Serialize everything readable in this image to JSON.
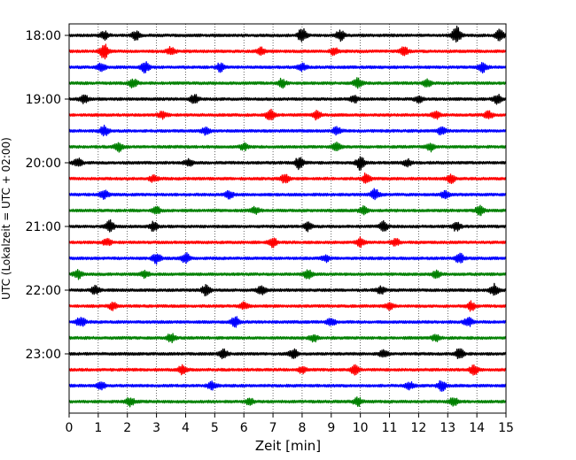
{
  "chart_data": {
    "type": "line",
    "title": "",
    "xlabel": "Zeit  [min]",
    "ylabel": "UTC (Lokalzeit = UTC + 02:00)",
    "xlim": [
      0,
      15
    ],
    "x_ticks": [
      0,
      1,
      2,
      3,
      4,
      5,
      6,
      7,
      8,
      9,
      10,
      11,
      12,
      13,
      14,
      15
    ],
    "x_tick_labels": [
      "0",
      "1",
      "2",
      "3",
      "4",
      "5",
      "6",
      "7",
      "8",
      "9",
      "10",
      "11",
      "12",
      "13",
      "14",
      "15"
    ],
    "y_tick_labels": [
      {
        "row": 0,
        "label": "18:00"
      },
      {
        "row": 4,
        "label": "19:00"
      },
      {
        "row": 8,
        "label": "20:00"
      },
      {
        "row": 12,
        "label": "21:00"
      },
      {
        "row": 16,
        "label": "22:00"
      },
      {
        "row": 20,
        "label": "23:00"
      }
    ],
    "grid": "vertical dotted",
    "color_cycle": [
      "#000000",
      "#ff0000",
      "#0000ff",
      "#008000"
    ],
    "series": [
      {
        "start": "18:00",
        "color": "#000000",
        "events": [
          [
            1.2,
            0.45
          ],
          [
            2.3,
            0.5
          ],
          [
            8.0,
            0.8
          ],
          [
            9.3,
            0.6
          ],
          [
            13.3,
            1.0
          ],
          [
            14.8,
            0.7
          ]
        ]
      },
      {
        "start": "18:15",
        "color": "#ff0000",
        "events": [
          [
            1.2,
            0.9
          ],
          [
            3.5,
            0.5
          ],
          [
            6.6,
            0.4
          ],
          [
            9.1,
            0.4
          ],
          [
            11.5,
            0.5
          ]
        ]
      },
      {
        "start": "18:30",
        "color": "#0000ff",
        "events": [
          [
            1.1,
            0.5
          ],
          [
            2.6,
            0.6
          ],
          [
            5.2,
            0.5
          ],
          [
            8.0,
            0.4
          ],
          [
            14.2,
            0.6
          ]
        ]
      },
      {
        "start": "18:45",
        "color": "#008000",
        "events": [
          [
            2.2,
            0.5
          ],
          [
            7.3,
            0.5
          ],
          [
            9.9,
            0.6
          ],
          [
            12.3,
            0.4
          ]
        ]
      },
      {
        "start": "19:00",
        "color": "#000000",
        "events": [
          [
            0.5,
            0.5
          ],
          [
            4.3,
            0.5
          ],
          [
            9.8,
            0.4
          ],
          [
            12.0,
            0.4
          ],
          [
            14.7,
            0.5
          ]
        ]
      },
      {
        "start": "19:15",
        "color": "#ff0000",
        "events": [
          [
            3.2,
            0.4
          ],
          [
            6.9,
            0.6
          ],
          [
            8.5,
            0.5
          ],
          [
            12.6,
            0.5
          ],
          [
            14.4,
            0.4
          ]
        ]
      },
      {
        "start": "19:30",
        "color": "#0000ff",
        "events": [
          [
            1.2,
            0.6
          ],
          [
            4.7,
            0.4
          ],
          [
            9.2,
            0.5
          ],
          [
            12.8,
            0.5
          ]
        ]
      },
      {
        "start": "19:45",
        "color": "#008000",
        "events": [
          [
            1.7,
            0.5
          ],
          [
            6.0,
            0.4
          ],
          [
            9.2,
            0.5
          ],
          [
            12.4,
            0.5
          ]
        ]
      },
      {
        "start": "20:00",
        "color": "#000000",
        "events": [
          [
            0.3,
            0.5
          ],
          [
            4.1,
            0.4
          ],
          [
            7.9,
            0.7
          ],
          [
            10.0,
            0.8
          ],
          [
            11.6,
            0.4
          ]
        ]
      },
      {
        "start": "20:15",
        "color": "#ff0000",
        "events": [
          [
            2.9,
            0.4
          ],
          [
            7.4,
            0.5
          ],
          [
            10.2,
            0.6
          ],
          [
            13.1,
            0.5
          ]
        ]
      },
      {
        "start": "20:30",
        "color": "#0000ff",
        "events": [
          [
            1.2,
            0.5
          ],
          [
            5.5,
            0.4
          ],
          [
            10.5,
            0.6
          ],
          [
            12.9,
            0.4
          ]
        ]
      },
      {
        "start": "20:45",
        "color": "#008000",
        "events": [
          [
            3.0,
            0.4
          ],
          [
            6.4,
            0.4
          ],
          [
            10.1,
            0.5
          ],
          [
            14.1,
            0.6
          ]
        ]
      },
      {
        "start": "21:00",
        "color": "#000000",
        "events": [
          [
            1.4,
            0.7
          ],
          [
            2.9,
            0.5
          ],
          [
            8.2,
            0.5
          ],
          [
            10.8,
            0.6
          ],
          [
            13.3,
            0.5
          ]
        ]
      },
      {
        "start": "21:15",
        "color": "#ff0000",
        "events": [
          [
            1.3,
            0.4
          ],
          [
            7.0,
            0.5
          ],
          [
            10.0,
            0.5
          ],
          [
            11.2,
            0.4
          ]
        ]
      },
      {
        "start": "21:30",
        "color": "#0000ff",
        "events": [
          [
            3.0,
            0.6
          ],
          [
            4.0,
            0.6
          ],
          [
            8.8,
            0.4
          ],
          [
            13.4,
            0.6
          ]
        ]
      },
      {
        "start": "21:45",
        "color": "#008000",
        "events": [
          [
            0.3,
            0.5
          ],
          [
            2.6,
            0.4
          ],
          [
            8.2,
            0.5
          ],
          [
            12.6,
            0.4
          ]
        ]
      },
      {
        "start": "22:00",
        "color": "#000000",
        "events": [
          [
            0.9,
            0.5
          ],
          [
            4.7,
            0.6
          ],
          [
            6.6,
            0.5
          ],
          [
            10.7,
            0.4
          ],
          [
            14.6,
            0.7
          ]
        ]
      },
      {
        "start": "22:15",
        "color": "#ff0000",
        "events": [
          [
            1.5,
            0.4
          ],
          [
            6.0,
            0.4
          ],
          [
            11.0,
            0.4
          ],
          [
            13.8,
            0.5
          ]
        ]
      },
      {
        "start": "22:30",
        "color": "#0000ff",
        "events": [
          [
            0.4,
            0.6
          ],
          [
            5.7,
            0.6
          ],
          [
            9.0,
            0.5
          ],
          [
            13.7,
            0.5
          ]
        ]
      },
      {
        "start": "22:45",
        "color": "#008000",
        "events": [
          [
            3.5,
            0.5
          ],
          [
            8.4,
            0.4
          ],
          [
            12.6,
            0.4
          ]
        ]
      },
      {
        "start": "23:00",
        "color": "#000000",
        "events": [
          [
            5.3,
            0.5
          ],
          [
            7.7,
            0.6
          ],
          [
            10.8,
            0.4
          ],
          [
            13.4,
            0.6
          ]
        ]
      },
      {
        "start": "23:15",
        "color": "#ff0000",
        "events": [
          [
            3.9,
            0.6
          ],
          [
            8.0,
            0.4
          ],
          [
            9.8,
            0.5
          ],
          [
            13.9,
            0.6
          ]
        ]
      },
      {
        "start": "23:30",
        "color": "#0000ff",
        "events": [
          [
            1.1,
            0.4
          ],
          [
            4.9,
            0.5
          ],
          [
            11.7,
            0.4
          ],
          [
            12.8,
            0.6
          ]
        ]
      },
      {
        "start": "23:45",
        "color": "#008000",
        "events": [
          [
            2.1,
            0.5
          ],
          [
            6.2,
            0.4
          ],
          [
            9.9,
            0.5
          ],
          [
            13.2,
            0.5
          ]
        ]
      }
    ]
  }
}
